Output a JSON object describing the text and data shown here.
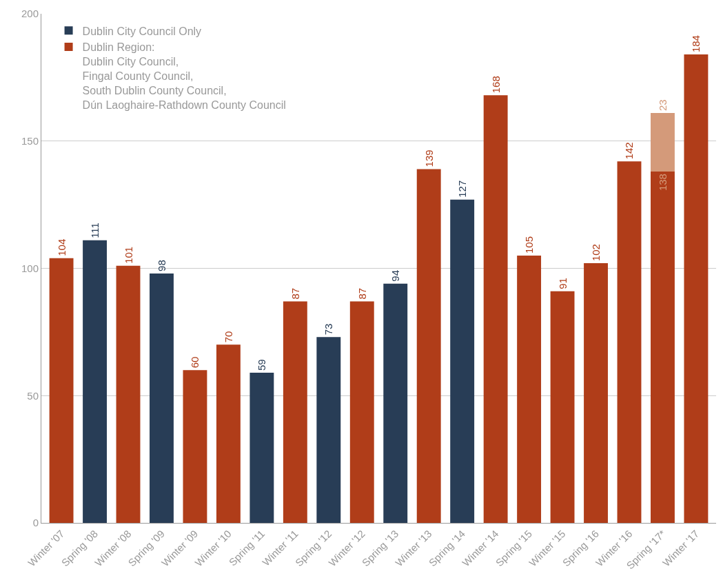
{
  "chart_data": {
    "type": "bar",
    "stacked": true,
    "categories": [
      "Winter '07",
      "Spring '08",
      "Winter '08",
      "Spring '09",
      "Winter '09",
      "Winter '10",
      "Spring '11",
      "Winter '11",
      "Spring '12",
      "Winter '12",
      "Spring '13",
      "Winter '13",
      "Spring '14",
      "Winter '14",
      "Spring '15",
      "Winter '15",
      "Spring '16",
      "Winter '16",
      "Spring '17*",
      "Winter '17"
    ],
    "series": [
      {
        "name": "Dublin City Council Only",
        "color": "#283d56",
        "values": [
          null,
          111,
          null,
          98,
          null,
          null,
          59,
          null,
          73,
          null,
          94,
          null,
          127,
          null,
          null,
          null,
          null,
          null,
          null,
          null
        ]
      },
      {
        "name": "Dublin Region:\nDublin City Council,\nFingal County Council,\nSouth Dublin County Council,\nDún Laoghaire-Rathdown County Council",
        "color": "#b03d19",
        "values": [
          104,
          null,
          101,
          null,
          60,
          70,
          null,
          87,
          null,
          87,
          null,
          139,
          null,
          168,
          105,
          91,
          102,
          142,
          138,
          184
        ]
      },
      {
        "color": "#d49a7a",
        "values": [
          null,
          null,
          null,
          null,
          null,
          null,
          null,
          null,
          null,
          null,
          null,
          null,
          null,
          null,
          null,
          null,
          null,
          null,
          23,
          null
        ]
      }
    ],
    "ylim": [
      0,
      200
    ],
    "yticks": [
      0,
      50,
      100,
      150,
      200
    ],
    "grid": "y",
    "legend": "top left",
    "data_labels": true
  }
}
